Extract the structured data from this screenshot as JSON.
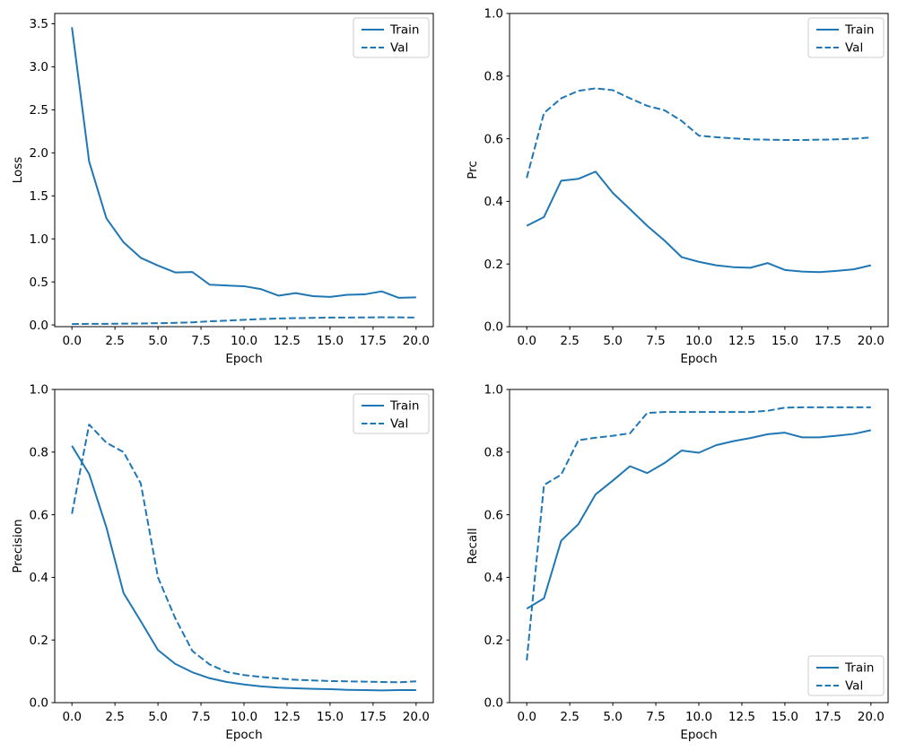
{
  "figure": {
    "background": "#ffffff",
    "line_color": "#1f77b4",
    "spine_color": "#000000",
    "legend_border_color": "#cccccc",
    "legend_labels": [
      "Train",
      "Val"
    ]
  },
  "chart_data": [
    {
      "id": "loss",
      "type": "line",
      "xlabel": "Epoch",
      "ylabel": "Loss",
      "xlim": [
        -1,
        21
      ],
      "ylim": [
        -0.02,
        3.62
      ],
      "xticks": [
        0,
        2.5,
        5,
        7.5,
        10,
        12.5,
        15,
        17.5,
        20
      ],
      "xtick_labels": [
        "0.0",
        "2.5",
        "5.0",
        "7.5",
        "10.0",
        "12.5",
        "15.0",
        "17.5",
        "20.0"
      ],
      "yticks": [
        0,
        0.5,
        1,
        1.5,
        2,
        2.5,
        3,
        3.5
      ],
      "ytick_labels": [
        "0.0",
        "0.5",
        "1.0",
        "1.5",
        "2.0",
        "2.5",
        "3.0",
        "3.5"
      ],
      "legend_loc": "upper-right",
      "grid": false,
      "x": [
        0,
        1,
        2,
        3,
        4,
        5,
        6,
        7,
        8,
        9,
        10,
        11,
        12,
        13,
        14,
        15,
        16,
        17,
        18,
        19,
        20
      ],
      "series": [
        {
          "name": "Train",
          "dashed": false,
          "values": [
            3.46,
            1.9,
            1.24,
            0.96,
            0.78,
            0.69,
            0.61,
            0.615,
            0.468,
            0.458,
            0.45,
            0.415,
            0.34,
            0.37,
            0.335,
            0.325,
            0.35,
            0.355,
            0.39,
            0.315,
            0.32
          ]
        },
        {
          "name": "Val",
          "dashed": true,
          "values": [
            0.01,
            0.012,
            0.013,
            0.015,
            0.017,
            0.02,
            0.024,
            0.03,
            0.042,
            0.05,
            0.06,
            0.068,
            0.075,
            0.079,
            0.082,
            0.085,
            0.086,
            0.087,
            0.089,
            0.088,
            0.086
          ]
        }
      ]
    },
    {
      "id": "prc",
      "type": "line",
      "xlabel": "Epoch",
      "ylabel": "Prc",
      "xlim": [
        -1,
        21
      ],
      "ylim": [
        0,
        1
      ],
      "xticks": [
        0,
        2.5,
        5,
        7.5,
        10,
        12.5,
        15,
        17.5,
        20
      ],
      "xtick_labels": [
        "0.0",
        "2.5",
        "5.0",
        "7.5",
        "10.0",
        "12.5",
        "15.0",
        "17.5",
        "20.0"
      ],
      "yticks": [
        0,
        0.2,
        0.4,
        0.6,
        0.8,
        1
      ],
      "ytick_labels": [
        "0.0",
        "0.2",
        "0.4",
        "0.6",
        "0.8",
        "1.0"
      ],
      "legend_loc": "upper-right",
      "grid": false,
      "x": [
        0,
        1,
        2,
        3,
        4,
        5,
        6,
        7,
        8,
        9,
        10,
        11,
        12,
        13,
        14,
        15,
        16,
        17,
        18,
        19,
        20
      ],
      "series": [
        {
          "name": "Train",
          "dashed": false,
          "values": [
            0.322,
            0.35,
            0.466,
            0.472,
            0.495,
            0.427,
            0.375,
            0.322,
            0.275,
            0.222,
            0.207,
            0.196,
            0.19,
            0.188,
            0.203,
            0.181,
            0.176,
            0.174,
            0.178,
            0.183,
            0.196
          ]
        },
        {
          "name": "Val",
          "dashed": true,
          "values": [
            0.475,
            0.682,
            0.729,
            0.753,
            0.761,
            0.755,
            0.729,
            0.705,
            0.691,
            0.657,
            0.61,
            0.605,
            0.601,
            0.598,
            0.597,
            0.596,
            0.596,
            0.597,
            0.598,
            0.6,
            0.604
          ]
        }
      ]
    },
    {
      "id": "precision",
      "type": "line",
      "xlabel": "Epoch",
      "ylabel": "Precision",
      "xlim": [
        -1,
        21
      ],
      "ylim": [
        0,
        1
      ],
      "xticks": [
        0,
        2.5,
        5,
        7.5,
        10,
        12.5,
        15,
        17.5,
        20
      ],
      "xtick_labels": [
        "0.0",
        "2.5",
        "5.0",
        "7.5",
        "10.0",
        "12.5",
        "15.0",
        "17.5",
        "20.0"
      ],
      "yticks": [
        0,
        0.2,
        0.4,
        0.6,
        0.8,
        1
      ],
      "ytick_labels": [
        "0.0",
        "0.2",
        "0.4",
        "0.6",
        "0.8",
        "1.0"
      ],
      "legend_loc": "upper-right",
      "grid": false,
      "x": [
        0,
        1,
        2,
        3,
        4,
        5,
        6,
        7,
        8,
        9,
        10,
        11,
        12,
        13,
        14,
        15,
        16,
        17,
        18,
        19,
        20
      ],
      "series": [
        {
          "name": "Train",
          "dashed": false,
          "values": [
            0.82,
            0.73,
            0.56,
            0.35,
            0.26,
            0.168,
            0.124,
            0.097,
            0.078,
            0.066,
            0.058,
            0.052,
            0.048,
            0.046,
            0.044,
            0.043,
            0.041,
            0.04,
            0.039,
            0.04,
            0.04
          ]
        },
        {
          "name": "Val",
          "dashed": true,
          "values": [
            0.603,
            0.888,
            0.83,
            0.8,
            0.7,
            0.4,
            0.27,
            0.165,
            0.122,
            0.098,
            0.088,
            0.082,
            0.077,
            0.073,
            0.071,
            0.069,
            0.068,
            0.067,
            0.066,
            0.065,
            0.068
          ]
        }
      ]
    },
    {
      "id": "recall",
      "type": "line",
      "xlabel": "Epoch",
      "ylabel": "Recall",
      "xlim": [
        -1,
        21
      ],
      "ylim": [
        0,
        1
      ],
      "xticks": [
        0,
        2.5,
        5,
        7.5,
        10,
        12.5,
        15,
        17.5,
        20
      ],
      "xtick_labels": [
        "0.0",
        "2.5",
        "5.0",
        "7.5",
        "10.0",
        "12.5",
        "15.0",
        "17.5",
        "20.0"
      ],
      "yticks": [
        0,
        0.2,
        0.4,
        0.6,
        0.8,
        1
      ],
      "ytick_labels": [
        "0.0",
        "0.2",
        "0.4",
        "0.6",
        "0.8",
        "1.0"
      ],
      "legend_loc": "lower-right",
      "grid": false,
      "x": [
        0,
        1,
        2,
        3,
        4,
        5,
        6,
        7,
        8,
        9,
        10,
        11,
        12,
        13,
        14,
        15,
        16,
        17,
        18,
        19,
        20
      ],
      "series": [
        {
          "name": "Train",
          "dashed": false,
          "values": [
            0.3,
            0.333,
            0.517,
            0.57,
            0.665,
            0.709,
            0.755,
            0.733,
            0.765,
            0.805,
            0.798,
            0.822,
            0.835,
            0.845,
            0.857,
            0.862,
            0.847,
            0.847,
            0.852,
            0.858,
            0.87
          ]
        },
        {
          "name": "Val",
          "dashed": true,
          "values": [
            0.135,
            0.695,
            0.728,
            0.838,
            0.846,
            0.852,
            0.86,
            0.925,
            0.928,
            0.928,
            0.928,
            0.928,
            0.928,
            0.928,
            0.932,
            0.942,
            0.943,
            0.943,
            0.943,
            0.943,
            0.943
          ]
        }
      ]
    }
  ]
}
